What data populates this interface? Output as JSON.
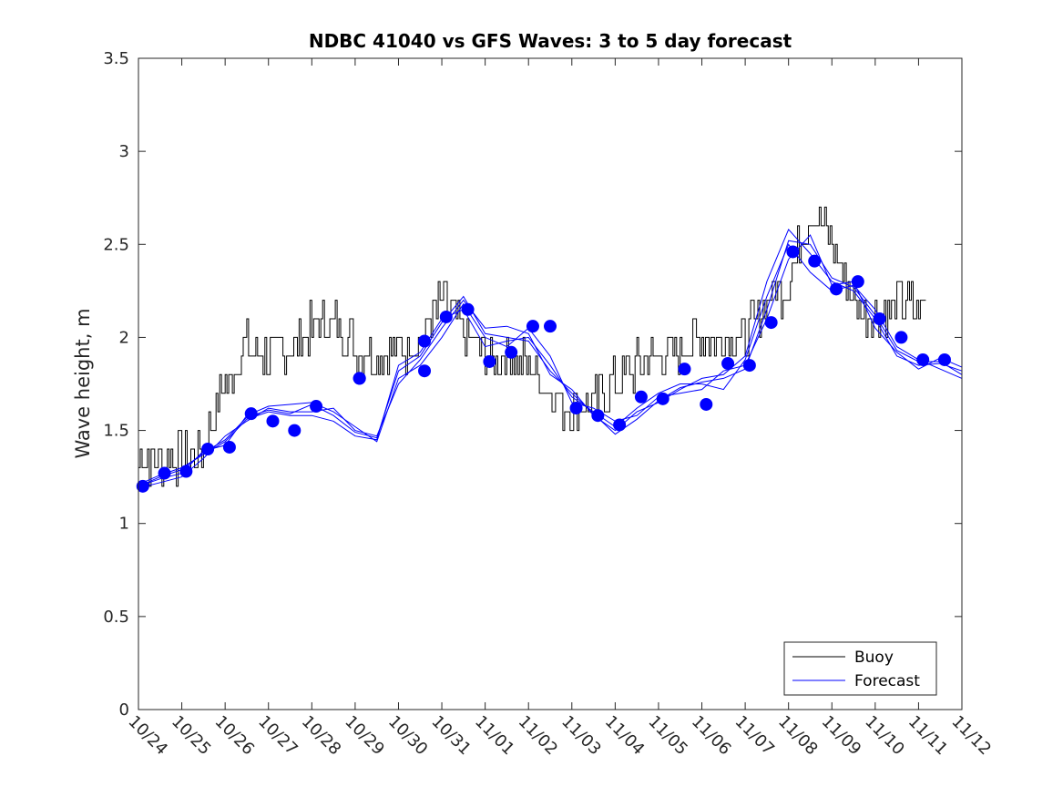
{
  "chart_data": {
    "type": "line",
    "title": "NDBC 41040 vs GFS Waves: 3 to 5 day forecast",
    "xlabel": "",
    "ylabel": "Wave height, m",
    "xlim": [
      0,
      19
    ],
    "ylim": [
      0,
      3.5
    ],
    "grid": false,
    "legend_position": "bottom-right",
    "x_tick_labels": [
      "10/24",
      "10/25",
      "10/26",
      "10/27",
      "10/28",
      "10/29",
      "10/30",
      "10/31",
      "11/01",
      "11/02",
      "11/03",
      "11/04",
      "11/05",
      "11/06",
      "11/07",
      "11/08",
      "11/09",
      "11/10",
      "11/11",
      "11/12"
    ],
    "y_ticks": [
      0,
      0.5,
      1,
      1.5,
      2,
      2.5,
      3,
      3.5
    ],
    "y_tick_labels": [
      "0",
      "0.5",
      "1",
      "1.5",
      "2",
      "2.5",
      "3",
      "3.5"
    ],
    "legend": [
      "Buoy",
      "Forecast"
    ],
    "colors": {
      "buoy": "#000000",
      "forecast": "#0000ff",
      "marker": "#0000ff"
    },
    "buoy": {
      "name": "Buoy",
      "x": [
        0.0,
        0.5,
        1.0,
        1.5,
        2.0,
        2.5,
        3.0,
        3.5,
        4.0,
        4.5,
        5.0,
        5.5,
        6.0,
        6.5,
        7.0,
        7.5,
        8.0,
        8.5,
        9.0,
        9.5,
        10.0,
        10.5,
        11.0,
        11.5,
        12.0,
        12.5,
        13.0,
        13.5,
        14.0,
        14.5,
        15.0,
        15.5,
        16.0,
        16.5,
        17.0,
        17.5,
        18.0,
        18.2
      ],
      "y": [
        1.35,
        1.35,
        1.35,
        1.4,
        1.75,
        1.95,
        1.9,
        1.95,
        2.05,
        2.1,
        1.95,
        1.92,
        1.92,
        2.0,
        2.2,
        2.05,
        1.9,
        1.9,
        1.85,
        1.7,
        1.6,
        1.65,
        1.75,
        1.85,
        1.9,
        1.95,
        2.0,
        2.0,
        2.0,
        2.2,
        2.3,
        2.7,
        2.5,
        2.2,
        2.1,
        2.2,
        2.15,
        2.2
      ],
      "noise": 0.12
    },
    "forecast_markers": {
      "name": "Forecast",
      "x": [
        0.1,
        0.6,
        1.1,
        1.6,
        2.1,
        2.6,
        3.1,
        3.6,
        4.1,
        5.1,
        5.1,
        6.6,
        6.6,
        7.1,
        7.6,
        8.1,
        8.6,
        9.1,
        9.5,
        10.1,
        10.6,
        11.1,
        11.6,
        12.1,
        12.6,
        13.1,
        13.6,
        14.1,
        14.6,
        15.1,
        15.6,
        16.1,
        16.6,
        17.1,
        17.6,
        18.1,
        18.6
      ],
      "y": [
        1.2,
        1.27,
        1.28,
        1.4,
        1.41,
        1.59,
        1.55,
        1.5,
        1.63,
        1.78,
        1.78,
        1.82,
        1.98,
        2.11,
        2.15,
        1.87,
        1.92,
        2.06,
        2.06,
        1.62,
        1.58,
        1.53,
        1.68,
        1.67,
        1.83,
        1.64,
        1.86,
        1.85,
        2.08,
        2.46,
        2.41,
        2.26,
        2.3,
        2.1,
        2.0,
        1.88,
        1.88
      ]
    },
    "forecast_lines": [
      {
        "name": "Forecast",
        "x": [
          0,
          0.5,
          1,
          1.5,
          2,
          2.5,
          3,
          3.5,
          4,
          4.5,
          5,
          5.5,
          6,
          6.5,
          7,
          7.5,
          8,
          8.5,
          9,
          9.5,
          10,
          10.5,
          11,
          11.5,
          12,
          12.5,
          13,
          13.5,
          14,
          14.5,
          15,
          15.5,
          16,
          16.5,
          17,
          17.5,
          18,
          18.5,
          19
        ],
        "y": [
          1.21,
          1.26,
          1.3,
          1.37,
          1.44,
          1.56,
          1.6,
          1.58,
          1.58,
          1.55,
          1.47,
          1.45,
          1.85,
          1.92,
          2.1,
          2.15,
          1.95,
          1.98,
          2.0,
          1.85,
          1.68,
          1.6,
          1.52,
          1.62,
          1.7,
          1.75,
          1.75,
          1.72,
          1.88,
          2.22,
          2.5,
          2.35,
          2.25,
          2.28,
          2.15,
          1.95,
          1.88,
          1.83,
          1.78
        ]
      },
      {
        "name": "Forecast",
        "x": [
          0,
          0.5,
          1,
          1.5,
          2,
          2.5,
          3,
          3.5,
          4,
          4.5,
          5,
          5.5,
          6,
          6.5,
          7,
          7.5,
          8,
          8.5,
          9,
          9.5,
          10,
          10.5,
          11,
          11.5,
          12,
          12.5,
          13,
          13.5,
          14,
          14.5,
          15,
          15.5,
          16,
          16.5,
          17,
          17.5,
          18,
          18.5,
          19
        ],
        "y": [
          1.19,
          1.22,
          1.25,
          1.35,
          1.47,
          1.55,
          1.62,
          1.6,
          1.6,
          1.62,
          1.5,
          1.47,
          1.75,
          1.88,
          2.05,
          2.2,
          2.05,
          2.06,
          2.02,
          1.8,
          1.72,
          1.58,
          1.5,
          1.6,
          1.65,
          1.72,
          1.78,
          1.8,
          1.9,
          2.3,
          2.58,
          2.45,
          2.3,
          2.25,
          2.1,
          1.9,
          1.85,
          1.86,
          1.82
        ]
      },
      {
        "name": "Forecast",
        "x": [
          0,
          0.5,
          1,
          1.5,
          2,
          2.5,
          3,
          3.5,
          4,
          4.5,
          5,
          5.5,
          6,
          6.5,
          7,
          7.5,
          8,
          8.5,
          9,
          9.5,
          10,
          10.5,
          11,
          11.5,
          12,
          12.5,
          13,
          13.5,
          14,
          14.5,
          15,
          15.5,
          16,
          16.5,
          17,
          17.5,
          18,
          18.5,
          19
        ],
        "y": [
          1.2,
          1.24,
          1.27,
          1.39,
          1.42,
          1.58,
          1.63,
          1.64,
          1.65,
          1.6,
          1.52,
          1.44,
          1.78,
          1.85,
          2.0,
          2.18,
          2.0,
          1.95,
          2.05,
          1.9,
          1.65,
          1.62,
          1.55,
          1.58,
          1.68,
          1.7,
          1.72,
          1.82,
          1.85,
          2.1,
          2.42,
          2.55,
          2.28,
          2.3,
          2.05,
          1.92,
          1.83,
          1.89,
          1.84
        ]
      },
      {
        "name": "Forecast",
        "x": [
          0,
          0.5,
          1,
          1.5,
          2,
          2.5,
          3,
          3.5,
          4,
          4.5,
          5,
          5.5,
          6,
          6.5,
          7,
          7.5,
          8,
          8.5,
          9,
          9.5,
          10,
          10.5,
          11,
          11.5,
          12,
          12.5,
          13,
          13.5,
          14,
          14.5,
          15,
          15.5,
          16,
          16.5,
          17,
          17.5,
          18,
          18.5,
          19
        ],
        "y": [
          1.2,
          1.25,
          1.29,
          1.38,
          1.45,
          1.57,
          1.61,
          1.59,
          1.64,
          1.58,
          1.49,
          1.46,
          1.82,
          1.9,
          2.08,
          2.22,
          2.02,
          2.0,
          1.98,
          1.82,
          1.7,
          1.59,
          1.48,
          1.56,
          1.66,
          1.73,
          1.76,
          1.78,
          1.83,
          2.15,
          2.52,
          2.5,
          2.32,
          2.27,
          2.12,
          1.93,
          1.87,
          1.87,
          1.8
        ]
      }
    ]
  }
}
